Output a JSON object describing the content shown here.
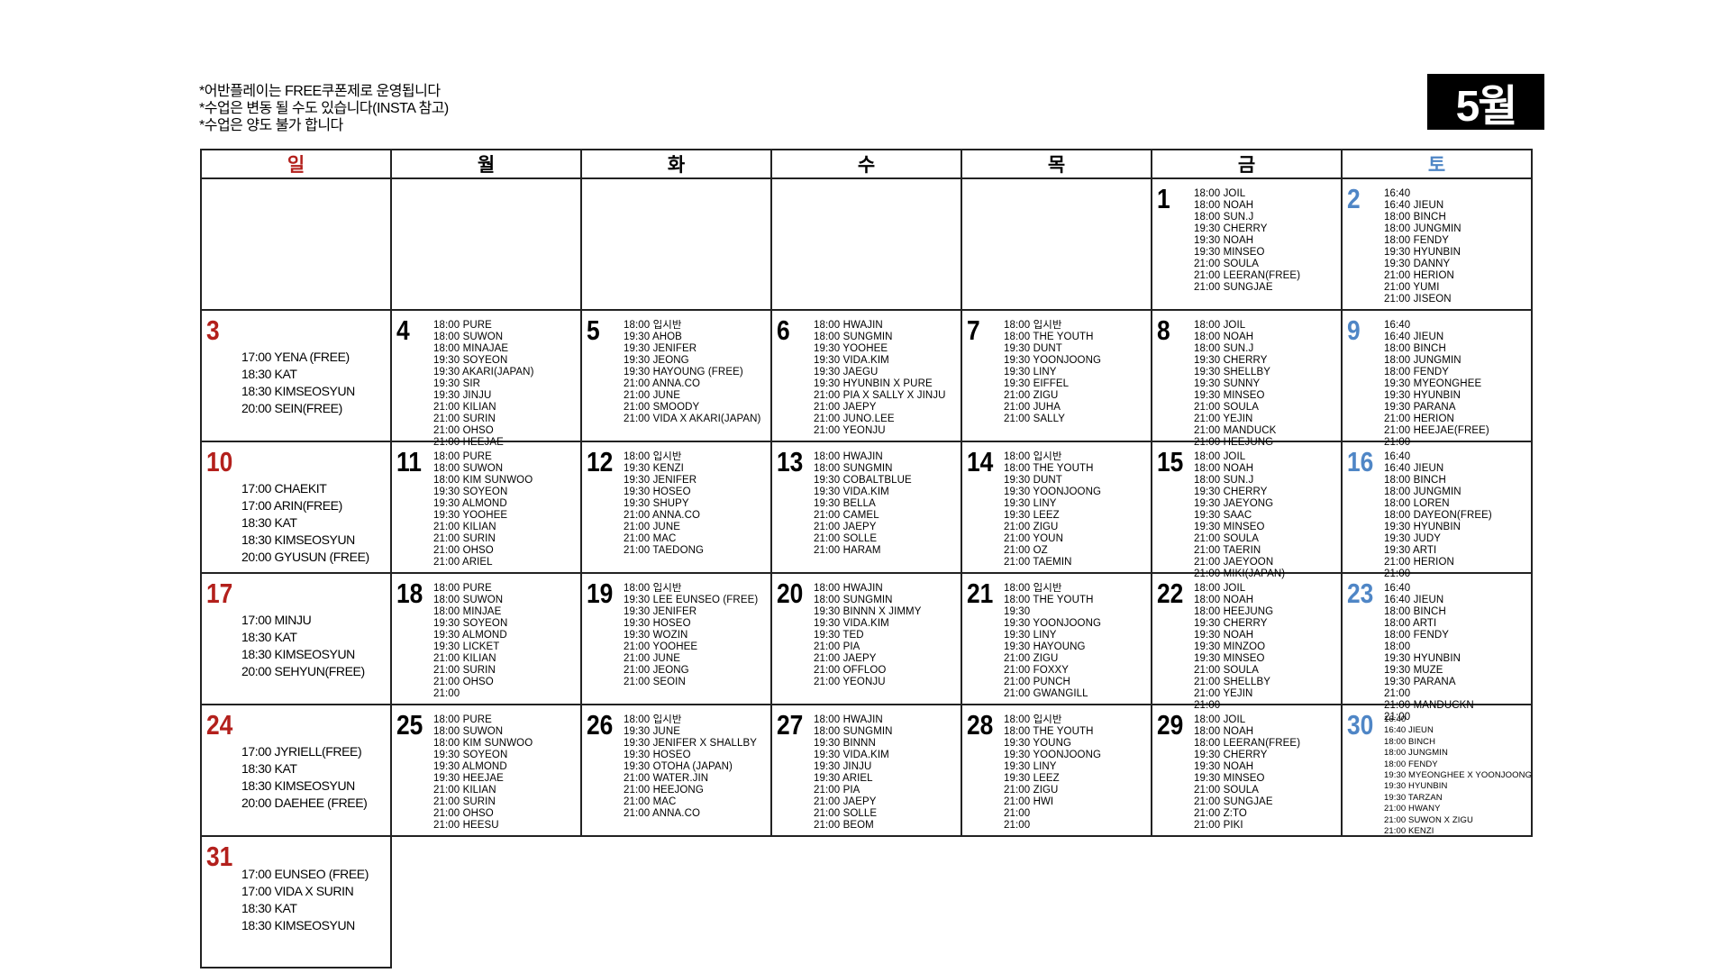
{
  "notes": [
    "*어반플레이는 FREE쿠폰제로 운영됩니다",
    "*수업은 변동 될 수도 있습니다(INSTA 참고)",
    "*수업은 양도 불가 합니다"
  ],
  "month_label": "5월",
  "weekdays": [
    "일",
    "월",
    "화",
    "수",
    "목",
    "금",
    "토"
  ],
  "colors": {
    "sunday": "#b3201c",
    "saturday": "#4f86c6",
    "border": "#222222"
  },
  "weeks": [
    [
      null,
      null,
      null,
      null,
      null,
      {
        "day": "1",
        "classes": [
          "18:00 JOIL",
          "18:00 NOAH",
          "18:00 SUN.J",
          "19:30 CHERRY",
          "19:30 NOAH",
          "19:30 MINSEO",
          "21:00 SOULA",
          "21:00 LEERAN(FREE)",
          "21:00 SUNGJAE"
        ]
      },
      {
        "day": "2",
        "classes": [
          "16:40",
          "16:40 JIEUN",
          "18:00 BINCH",
          "18:00 JUNGMIN",
          "18:00 FENDY",
          "19:30 HYUNBIN",
          "19:30 DANNY",
          "21:00 HERION",
          "21:00 YUMI",
          "21:00 JISEON"
        ]
      }
    ],
    [
      {
        "day": "3",
        "classes": [
          "17:00 YENA (FREE)",
          "18:30 KAT",
          "18:30 KIMSEOSYUN",
          "20:00 SEIN(FREE)"
        ]
      },
      {
        "day": "4",
        "classes": [
          "18:00 PURE",
          "18:00 SUWON",
          "18:00 MINAJAE",
          "19:30 SOYEON",
          "19:30 AKARI(JAPAN)",
          "19:30 SIR",
          "19:30 JINJU",
          "21:00 KILIAN",
          "21:00 SURIN",
          "21:00 OHSO",
          "21:00 HEEJAE"
        ]
      },
      {
        "day": "5",
        "classes": [
          "18:00 입시반",
          "19:30 AHOB",
          "19:30 JENIFER",
          "19:30 JEONG",
          "19:30 HAYOUNG (FREE)",
          "21:00 ANNA.CO",
          "21:00 JUNE",
          "21:00 SMOODY",
          "21:00 VIDA X AKARI(JAPAN)"
        ]
      },
      {
        "day": "6",
        "classes": [
          "18:00 HWAJIN",
          "18:00 SUNGMIN",
          "19:30 YOOHEE",
          "19:30 VIDA.KIM",
          "19:30 JAEGU",
          "19:30 HYUNBIN X PURE",
          "21:00 PIA X SALLY X JINJU",
          "21:00 JAEPY",
          "21:00 JUNO.LEE",
          "21:00 YEONJU"
        ]
      },
      {
        "day": "7",
        "classes": [
          "18:00 입시반",
          "18:00 THE YOUTH",
          "19:30 DUNT",
          "19:30 YOONJOONG",
          "19:30 LINY",
          "19:30 EIFFEL",
          "21:00 ZIGU",
          "21:00 JUHA",
          "21:00 SALLY"
        ]
      },
      {
        "day": "8",
        "classes": [
          "18:00 JOIL",
          "18:00 NOAH",
          "18:00 SUN.J",
          "19:30 CHERRY",
          "19:30 SHELLBY",
          "19:30 SUNNY",
          "19:30 MINSEO",
          "21:00 SOULA",
          "21:00 YEJIN",
          "21:00 MANDUCK",
          "21:00 HEEJUNG"
        ]
      },
      {
        "day": "9",
        "classes": [
          "16:40",
          "16:40 JIEUN",
          "18:00 BINCH",
          "18:00 JUNGMIN",
          "18:00 FENDY",
          "19:30 MYEONGHEE",
          "19:30 HYUNBIN",
          "19:30 PARANA",
          "21:00 HERION",
          "21:00 HEEJAE(FREE)",
          "21:00"
        ]
      }
    ],
    [
      {
        "day": "10",
        "classes": [
          "17:00 CHAEKIT",
          "17:00 ARIN(FREE)",
          "18:30 KAT",
          "18:30 KIMSEOSYUN",
          "20:00 GYUSUN (FREE)"
        ]
      },
      {
        "day": "11",
        "classes": [
          "18:00 PURE",
          "18:00 SUWON",
          "18:00 KIM SUNWOO",
          "19:30 SOYEON",
          "19:30 ALMOND",
          "19:30 YOOHEE",
          "21:00 KILIAN",
          "21:00 SURIN",
          "21:00 OHSO",
          "21:00 ARIEL"
        ]
      },
      {
        "day": "12",
        "classes": [
          "18:00 입시반",
          "19:30 KENZI",
          "19:30 JENIFER",
          "19:30 HOSEO",
          "19:30 SHUPY",
          "21:00 ANNA.CO",
          "21:00 JUNE",
          "21:00 MAC",
          "21:00 TAEDONG"
        ]
      },
      {
        "day": "13",
        "classes": [
          "18:00 HWAJIN",
          "18:00 SUNGMIN",
          "19:30 COBALTBLUE",
          "19:30 VIDA.KIM",
          "19:30 BELLA",
          "21:00 CAMEL",
          "21:00 JAEPY",
          "21:00 SOLLE",
          "21:00 HARAM"
        ]
      },
      {
        "day": "14",
        "classes": [
          "18:00 입시반",
          "18:00 THE YOUTH",
          "19:30 DUNT",
          "19:30 YOONJOONG",
          "19:30 LINY",
          "19:30 LEEZ",
          "21:00 ZIGU",
          "21:00 YOUN",
          "21:00 OZ",
          "21:00 TAEMIN"
        ]
      },
      {
        "day": "15",
        "classes": [
          "18:00 JOIL",
          "18:00 NOAH",
          "18:00 SUN.J",
          "19:30 CHERRY",
          "19:30 JAEYONG",
          "19:30 SAAC",
          "19:30 MINSEO",
          "21:00 SOULA",
          "21:00 TAERIN",
          "21:00 JAEYOON",
          "21:00 MIKI(JAPAN)"
        ]
      },
      {
        "day": "16",
        "classes": [
          "16:40",
          "16:40 JIEUN",
          "18:00 BINCH",
          "18:00 JUNGMIN",
          "18:00 LOREN",
          "18:00 DAYEON(FREE)",
          "19:30 HYUNBIN",
          "19:30 JUDY",
          "19:30 ARTI",
          "21:00 HERION",
          "21:00"
        ]
      }
    ],
    [
      {
        "day": "17",
        "classes": [
          "17:00 MINJU",
          "18:30 KAT",
          "18:30 KIMSEOSYUN",
          "20:00 SEHYUN(FREE)"
        ]
      },
      {
        "day": "18",
        "classes": [
          "18:00 PURE",
          "18:00 SUWON",
          "18:00 MINJAE",
          "19:30 SOYEON",
          "19:30 ALMOND",
          "19:30 LICKET",
          "21:00 KILIAN",
          "21:00 SURIN",
          "21:00 OHSO",
          "21:00"
        ]
      },
      {
        "day": "19",
        "classes": [
          "18:00 입시반",
          "19:30 LEE EUNSEO (FREE)",
          "19:30 JENIFER",
          "19:30 HOSEO",
          "19:30 WOZIN",
          "21:00 YOOHEE",
          "21:00 JUNE",
          "21:00 JEONG",
          "21:00 SEOIN"
        ]
      },
      {
        "day": "20",
        "classes": [
          "18:00 HWAJIN",
          "18:00 SUNGMIN",
          "19:30 BINNN X JIMMY",
          "19:30 VIDA.KIM",
          "19:30 TED",
          "21:00 PIA",
          "21:00 JAEPY",
          "21:00 OFFLOO",
          "21:00 YEONJU"
        ]
      },
      {
        "day": "21",
        "classes": [
          "18:00 입시반",
          "18:00 THE YOUTH",
          "19:30",
          "19:30 YOONJOONG",
          "19:30 LINY",
          "19:30 HAYOUNG",
          "21:00 ZIGU",
          "21:00 FOXXY",
          "21:00 PUNCH",
          "21:00 GWANGILL"
        ]
      },
      {
        "day": "22",
        "classes": [
          "18:00 JOIL",
          "18:00 NOAH",
          "18:00 HEEJUNG",
          "19:30 CHERRY",
          "19:30 NOAH",
          "19:30 MINZOO",
          "19:30 MINSEO",
          "21:00 SOULA",
          "21:00 SHELLBY",
          "21:00 YEJIN",
          "21:00"
        ]
      },
      {
        "day": "23",
        "classes": [
          "16:40",
          "16:40 JIEUN",
          "18:00 BINCH",
          "18:00 ARTI",
          "18:00 FENDY",
          "18:00",
          "19:30 HYUNBIN",
          "19:30 MUZE",
          "19:30 PARANA",
          "21:00",
          "21:00 MANDUCKN",
          "21:00"
        ]
      }
    ],
    [
      {
        "day": "24",
        "classes": [
          "17:00 JYRIELL(FREE)",
          "18:30 KAT",
          "18:30 KIMSEOSYUN",
          "20:00 DAEHEE (FREE)"
        ]
      },
      {
        "day": "25",
        "classes": [
          "18:00 PURE",
          "18:00 SUWON",
          "18:00 KIM SUNWOO",
          "19:30 SOYEON",
          "19:30 ALMOND",
          "19:30 HEEJAE",
          "21:00 KILIAN",
          "21:00 SURIN",
          "21:00 OHSO",
          "21:00 HEESU"
        ]
      },
      {
        "day": "26",
        "classes": [
          "18:00 입시반",
          "19:30 JUNE",
          "19:30 JENIFER X SHALLBY",
          "19:30 HOSEO",
          "19:30 OTOHA (JAPAN)",
          "21:00 WATER.JIN",
          "21:00 HEEJONG",
          "21:00 MAC",
          "21:00 ANNA.CO"
        ]
      },
      {
        "day": "27",
        "classes": [
          "18:00 HWAJIN",
          "18:00 SUNGMIN",
          "19:30 BINNN",
          "19:30 VIDA.KIM",
          "19:30 JINJU",
          "19:30 ARIEL",
          "21:00 PIA",
          "21:00 JAEPY",
          "21:00 SOLLE",
          "21:00 BEOM"
        ]
      },
      {
        "day": "28",
        "classes": [
          "18:00 입시반",
          "18:00 THE YOUTH",
          "19:30 YOUNG",
          "19:30 YOONJOONG",
          "19:30 LINY",
          "19:30 LEEZ",
          "21:00 ZIGU",
          "21:00 HWI",
          "21:00",
          "21:00"
        ]
      },
      {
        "day": "29",
        "classes": [
          "18:00 JOIL",
          "18:00 NOAH",
          "18:00 LEERAN(FREE)",
          "19:30 CHERRY",
          "19:30 NOAH",
          "19:30 MINSEO",
          "21:00 SOULA",
          "21:00 SUNGJAE",
          "21:00 Z:TO",
          "21:00 PIKI"
        ]
      },
      {
        "day": "30",
        "small": true,
        "classes": [
          "16:40",
          "16:40 JIEUN",
          "18:00 BINCH",
          "18:00 JUNGMIN",
          "18:00 FENDY",
          "19:30 MYEONGHEE X YOONJOONG",
          "19:30 HYUNBIN",
          "19:30 TARZAN",
          "21:00 HWANY",
          "21:00 SUWON X ZIGU",
          "21:00 KENZI"
        ]
      }
    ],
    [
      {
        "day": "31",
        "classes": [
          "17:00 EUNSEO (FREE)",
          "17:00 VIDA X SURIN",
          "18:30 KAT",
          "18:30 KIMSEOSYUN"
        ]
      },
      null,
      null,
      null,
      null,
      null,
      null
    ]
  ]
}
